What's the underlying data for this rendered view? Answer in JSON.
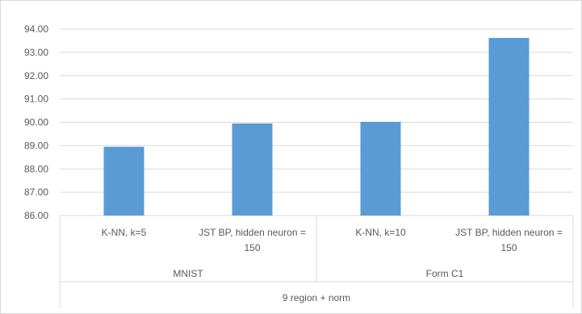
{
  "chart_data": {
    "type": "bar",
    "categories": [
      [
        "K-NN, k=5"
      ],
      [
        "JST BP, hidden neuron =",
        "150"
      ],
      [
        "K-NN, k=10"
      ],
      [
        "JST BP, hidden neuron =",
        "150"
      ]
    ],
    "groups": [
      {
        "label": "MNIST",
        "span": [
          0,
          1
        ]
      },
      {
        "label": "Form C1",
        "span": [
          2,
          3
        ]
      }
    ],
    "super_group": "9 region + norm",
    "values": [
      88.95,
      89.95,
      90.02,
      93.62
    ],
    "ylim": [
      86,
      94
    ],
    "yticks": [
      "86.00",
      "87.00",
      "88.00",
      "89.00",
      "90.00",
      "91.00",
      "92.00",
      "93.00",
      "94.00"
    ],
    "grid": true,
    "bar_color": "#5b9bd5",
    "grid_color": "#d9d9d9"
  }
}
